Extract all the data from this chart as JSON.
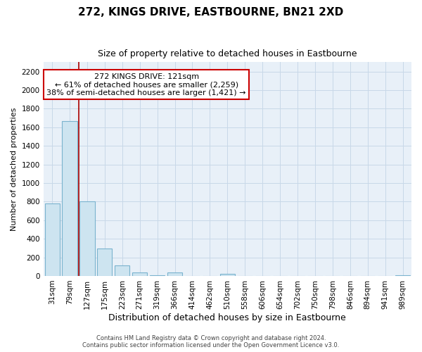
{
  "title": "272, KINGS DRIVE, EASTBOURNE, BN21 2XD",
  "subtitle": "Size of property relative to detached houses in Eastbourne",
  "xlabel": "Distribution of detached houses by size in Eastbourne",
  "ylabel": "Number of detached properties",
  "footer_line1": "Contains HM Land Registry data © Crown copyright and database right 2024.",
  "footer_line2": "Contains public sector information licensed under the Open Government Licence v3.0.",
  "bar_labels": [
    "31sqm",
    "79sqm",
    "127sqm",
    "175sqm",
    "223sqm",
    "271sqm",
    "319sqm",
    "366sqm",
    "414sqm",
    "462sqm",
    "510sqm",
    "558sqm",
    "606sqm",
    "654sqm",
    "702sqm",
    "750sqm",
    "798sqm",
    "846sqm",
    "894sqm",
    "941sqm",
    "989sqm"
  ],
  "bar_values": [
    780,
    1670,
    800,
    295,
    113,
    35,
    5,
    35,
    0,
    0,
    20,
    0,
    0,
    0,
    0,
    0,
    0,
    0,
    0,
    0,
    5
  ],
  "property_line_x": 1.5,
  "annotation_title": "272 KINGS DRIVE: 121sqm",
  "annotation_line1": "← 61% of detached houses are smaller (2,259)",
  "annotation_line2": "38% of semi-detached houses are larger (1,421) →",
  "bar_color": "#cde4f0",
  "bar_edge_color": "#7ab3ce",
  "property_line_color": "#aa0000",
  "annotation_box_edge_color": "#cc0000",
  "ylim": [
    0,
    2300
  ],
  "yticks": [
    0,
    200,
    400,
    600,
    800,
    1000,
    1200,
    1400,
    1600,
    1800,
    2000,
    2200
  ],
  "background_color": "#ffffff",
  "grid_color": "#c8d8e8",
  "title_fontsize": 11,
  "subtitle_fontsize": 9,
  "xlabel_fontsize": 9,
  "ylabel_fontsize": 8,
  "tick_fontsize": 7.5,
  "annotation_fontsize": 8,
  "footer_fontsize": 6
}
